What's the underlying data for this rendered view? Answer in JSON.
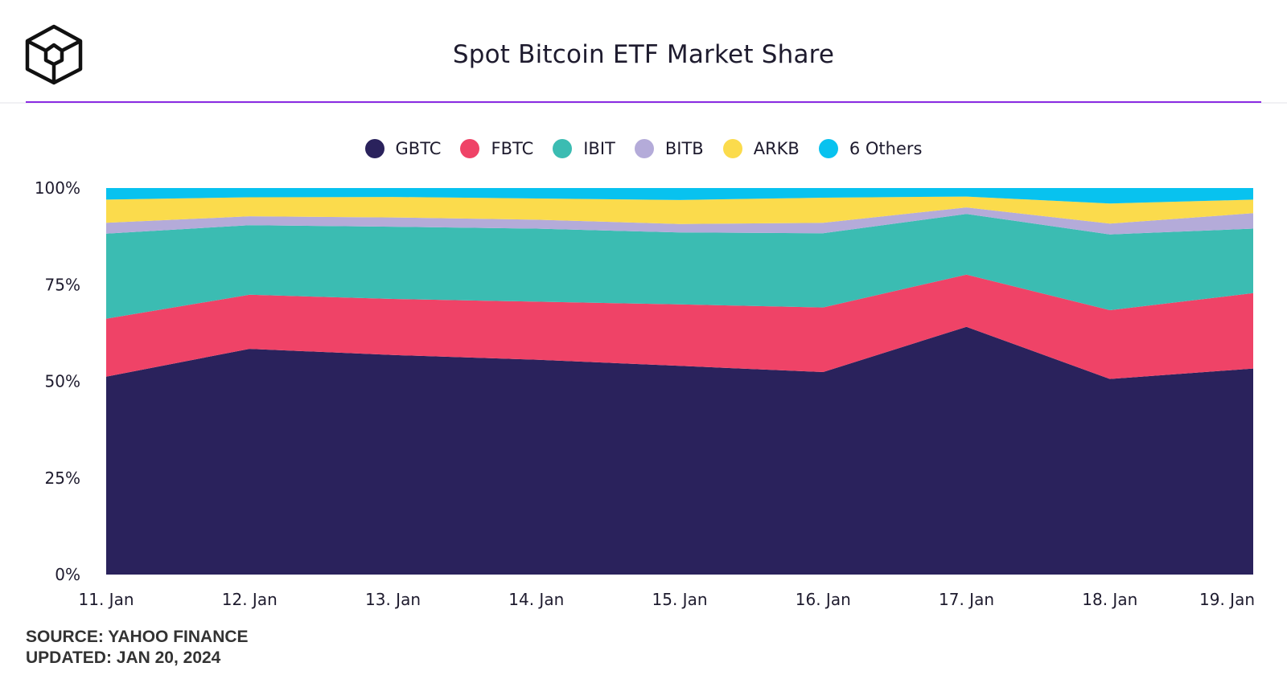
{
  "header": {
    "title": "Spot Bitcoin ETF Market Share",
    "logo_icon": "cube-logo-icon"
  },
  "footer": {
    "source": "SOURCE: YAHOO FINANCE",
    "updated": "UPDATED: JAN 20, 2024"
  },
  "colors": {
    "accent_rule": "#8a2be2",
    "text": "#1e1b2e"
  },
  "chart_data": {
    "type": "area",
    "stacked": true,
    "title": "Spot Bitcoin ETF Market Share",
    "xlabel": "",
    "ylabel": "",
    "categories": [
      "11. Jan",
      "12. Jan",
      "13. Jan",
      "14. Jan",
      "15. Jan",
      "16. Jan",
      "17. Jan",
      "18. Jan",
      "19. Jan"
    ],
    "y_ticks": [
      "0%",
      "25%",
      "50%",
      "75%",
      "100%"
    ],
    "ylim": [
      0,
      100
    ],
    "legend_position": "top-center",
    "grid": false,
    "series": [
      {
        "name": "GBTC",
        "color": "#2a225c",
        "values": [
          51.2,
          58.4,
          56.8,
          55.6,
          54.0,
          52.4,
          64.1,
          50.6,
          53.3
        ]
      },
      {
        "name": "FBTC",
        "color": "#ef4367",
        "values": [
          15.0,
          14.0,
          14.5,
          15.0,
          15.9,
          16.7,
          13.5,
          17.8,
          19.5
        ]
      },
      {
        "name": "IBIT",
        "color": "#3bbcb2",
        "values": [
          22.0,
          18.0,
          18.7,
          18.9,
          18.6,
          19.2,
          15.7,
          19.6,
          16.7
        ]
      },
      {
        "name": "BITB",
        "color": "#b4abd9",
        "values": [
          2.8,
          2.3,
          2.4,
          2.3,
          2.2,
          2.7,
          1.7,
          2.8,
          4.0
        ]
      },
      {
        "name": "ARKB",
        "color": "#fbdb4c",
        "values": [
          6.0,
          4.9,
          5.3,
          5.5,
          6.2,
          6.5,
          2.8,
          5.2,
          3.5
        ]
      },
      {
        "name": "6 Others",
        "color": "#08c2ef",
        "values": [
          3.0,
          2.4,
          2.3,
          2.7,
          3.1,
          2.5,
          2.2,
          4.0,
          3.0
        ]
      }
    ]
  }
}
